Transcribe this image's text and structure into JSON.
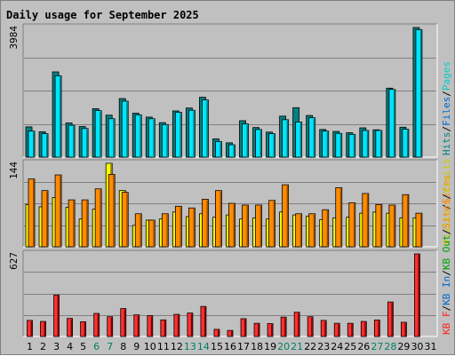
{
  "colors": {
    "frame": "#c0c0c0",
    "plot_bg": "#c0c0c0",
    "grid": "#808080",
    "title": "#0000cc",
    "weekend_day": "#008060",
    "weekday_day": "#000000",
    "hits_front": "#00e5ff",
    "hits_side": "#008080",
    "files_front": "#00e5ff",
    "files_side": "#008080",
    "pages_front": "#00e5ff",
    "pages_side": "#008080",
    "visits_front": "#ffff00",
    "visits_side": "#808000",
    "sites_front": "#ff8c00",
    "sites_side": "#a05000",
    "kbout_front": "#ff3030",
    "kbout_side": "#800000"
  },
  "chart_data": {
    "type": "bar",
    "title": "Daily usage for September 2025",
    "days": [
      "1",
      "2",
      "3",
      "4",
      "5",
      "6",
      "7",
      "8",
      "9",
      "10",
      "11",
      "12",
      "13",
      "14",
      "15",
      "16",
      "17",
      "18",
      "19",
      "20",
      "21",
      "22",
      "23",
      "24",
      "25",
      "26",
      "27",
      "28",
      "29",
      "30",
      "31"
    ],
    "weekend_days": [
      6,
      7,
      13,
      14,
      20,
      21,
      27,
      28
    ],
    "panels": [
      {
        "id": "hits",
        "max_label": "3984",
        "ymax": 3984,
        "legend": [
          {
            "text": "Hits",
            "color": "#008080"
          },
          {
            "text": "/",
            "color": "#000000"
          },
          {
            "text": "Files",
            "color": "#0066cc"
          },
          {
            "text": "/",
            "color": "#000000"
          },
          {
            "text": "Pages",
            "color": "#00cccc"
          }
        ],
        "series": [
          {
            "name": "Hits",
            "values": [
              930,
              780,
              2620,
              1050,
              940,
              1490,
              1290,
              1800,
              1350,
              1230,
              1060,
              1420,
              1510,
              1840,
              560,
              440,
              1120,
              910,
              770,
              1260,
              1520,
              1280,
              850,
              790,
              750,
              900,
              840,
              2120,
              920,
              3984,
              0
            ]
          },
          {
            "name": "Files",
            "values": [
              800,
              720,
              2500,
              980,
              880,
              1430,
              1180,
              1720,
              1300,
              1180,
              1000,
              1380,
              1440,
              1760,
              480,
              380,
              1020,
              850,
              720,
              1150,
              1080,
              1210,
              800,
              730,
              700,
              820,
              820,
              2080,
              860,
              3920,
              0
            ]
          }
        ]
      },
      {
        "id": "visits",
        "max_label": "144",
        "ymax": 144,
        "legend": [
          {
            "text": "Visits",
            "color": "#cccc00"
          },
          {
            "text": "/",
            "color": "#000000"
          },
          {
            "text": "Sites",
            "color": "#ff8c00"
          }
        ],
        "series": [
          {
            "name": "Visits",
            "values": [
              73,
              69,
              85,
              68,
              48,
              65,
              144,
              97,
              37,
              46,
              48,
              60,
              52,
              57,
              51,
              55,
              48,
              50,
              48,
              60,
              55,
              53,
              47,
              50,
              51,
              58,
              60,
              58,
              50,
              50,
              0
            ]
          },
          {
            "name": "Sites",
            "values": [
              117,
              97,
              124,
              81,
              81,
              100,
              125,
              94,
              57,
              46,
              57,
              70,
              67,
              82,
              97,
              75,
              72,
              72,
              80,
              107,
              57,
              57,
              64,
              102,
              76,
              92,
              73,
              72,
              90,
              58,
              0
            ]
          }
        ]
      },
      {
        "id": "kbout",
        "max_label": "627",
        "ymax": 627,
        "legend": [
          {
            "text": "KB F",
            "color": "#ff2020"
          },
          {
            "text": "/",
            "color": "#000000"
          },
          {
            "text": "KB In",
            "color": "#0066cc"
          },
          {
            "text": "/",
            "color": "#000000"
          },
          {
            "text": "KB Out",
            "color": "#00a000"
          },
          {
            "text": "/",
            "color": "#000000"
          },
          {
            "text": "Sites",
            "color": "#ff8c00"
          },
          {
            "text": "/",
            "color": "#000000"
          },
          {
            "text": "Visits",
            "color": "#cccc00"
          }
        ],
        "series": [
          {
            "name": "KB F",
            "values": [
              122,
              114,
              315,
              137,
              112,
              175,
              150,
              212,
              164,
              158,
              126,
              168,
              178,
              228,
              54,
              46,
              135,
              100,
              98,
              147,
              184,
              150,
              122,
              100,
              100,
              114,
              125,
              262,
              108,
              627,
              0
            ]
          }
        ]
      }
    ]
  }
}
